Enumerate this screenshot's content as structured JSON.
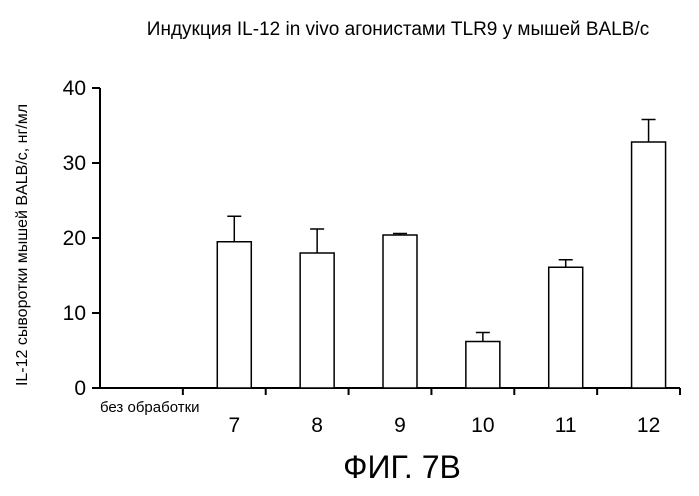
{
  "chart_data": {
    "type": "bar",
    "title": "Индукция IL-12 in vivo агонистами TLR9 у мышей BALB/c",
    "xlabel": "",
    "ylabel": "IL-12 сыворотки мышей BALB/c, нг/мл",
    "categories": [
      "без обработки",
      "7",
      "8",
      "9",
      "10",
      "11",
      "12"
    ],
    "values": [
      0,
      19.5,
      18,
      20.4,
      6.2,
      16.1,
      32.8
    ],
    "errors": [
      0,
      3.4,
      3.2,
      0.2,
      1.2,
      1.0,
      3.0
    ],
    "ylim": [
      0,
      40
    ],
    "yticks": [
      "0",
      "10",
      "20",
      "30",
      "40"
    ],
    "grid": false,
    "legend": "none",
    "bar_fill": "#ffffff",
    "bar_stroke": "#000000"
  },
  "caption": "ФИГ. 7В"
}
